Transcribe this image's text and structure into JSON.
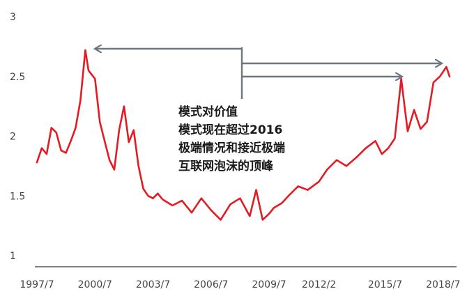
{
  "chart_data": {
    "type": "line",
    "title": "",
    "xlabel": "",
    "ylabel": "",
    "ylim": [
      1,
      3
    ],
    "y_ticks": [
      "1",
      "1.5",
      "2",
      "2.5",
      "3"
    ],
    "x_ticks": [
      "1997/7",
      "2000/7",
      "2003/7",
      "2006/7",
      "2009/7",
      "2012/2",
      "2015/7",
      "2018/7"
    ],
    "grid": false,
    "line_color": "#e31b23",
    "arrow_color": "#6b7680",
    "annotation": [
      "模式对价值",
      "模式现在超过2016",
      "极端情况和接近极端",
      "互联网泡沫的顶峰"
    ],
    "series": [
      {
        "x": [
          "1997/7",
          "1997/10",
          "1998/1",
          "1998/4",
          "1998/7",
          "1998/10",
          "1999/1",
          "1999/4",
          "1999/7",
          "1999/10",
          "2000/1",
          "2000/3",
          "2000/7",
          "2000/10",
          "2001/1",
          "2001/4",
          "2001/7",
          "2001/10",
          "2002/1",
          "2002/4",
          "2002/7",
          "2002/10",
          "2003/1",
          "2003/4",
          "2003/7",
          "2003/10",
          "2004/1",
          "2004/7",
          "2005/1",
          "2005/7",
          "2006/1",
          "2006/7",
          "2007/1",
          "2007/7",
          "2008/1",
          "2008/7",
          "2008/11",
          "2009/3",
          "2009/7",
          "2009/10",
          "2010/3",
          "2010/7",
          "2011/1",
          "2011/7",
          "2012/2",
          "2012/7",
          "2013/1",
          "2013/7",
          "2014/1",
          "2014/7",
          "2015/1",
          "2015/5",
          "2015/9",
          "2016/1",
          "2016/5",
          "2016/9",
          "2017/1",
          "2017/5",
          "2017/9",
          "2018/1",
          "2018/5",
          "2018/9",
          "2018/11"
        ],
        "y": [
          1.78,
          1.9,
          1.85,
          2.07,
          2.03,
          1.88,
          1.86,
          1.96,
          2.07,
          2.3,
          2.72,
          2.55,
          2.48,
          2.12,
          1.96,
          1.8,
          1.72,
          2.05,
          2.25,
          1.95,
          2.05,
          1.75,
          1.56,
          1.5,
          1.48,
          1.52,
          1.47,
          1.42,
          1.46,
          1.36,
          1.48,
          1.38,
          1.3,
          1.43,
          1.48,
          1.33,
          1.55,
          1.3,
          1.35,
          1.4,
          1.44,
          1.5,
          1.58,
          1.55,
          1.62,
          1.72,
          1.8,
          1.75,
          1.82,
          1.9,
          1.96,
          1.85,
          1.9,
          1.98,
          2.48,
          2.04,
          2.22,
          2.06,
          2.12,
          2.45,
          2.5,
          2.58,
          2.5
        ]
      }
    ]
  }
}
